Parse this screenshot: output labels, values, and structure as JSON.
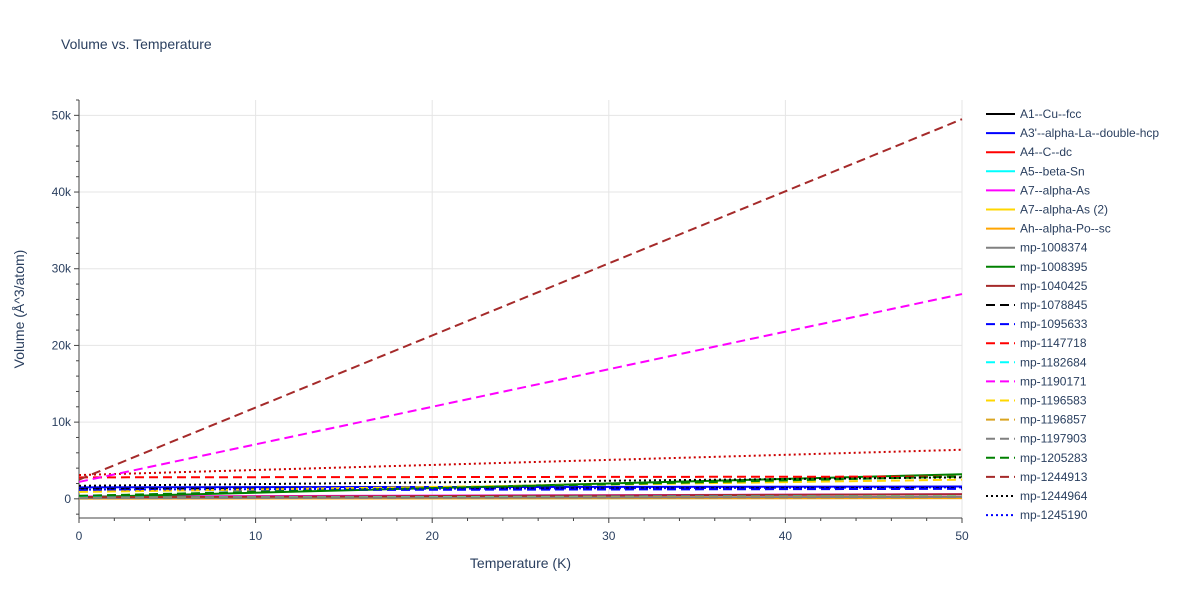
{
  "chart_data": {
    "type": "line",
    "title": "Volume vs. Temperature",
    "xlabel": "Temperature (K)",
    "ylabel": "Volume (Å^3/atom)",
    "xlim": [
      0,
      50
    ],
    "ylim": [
      -2500,
      52000
    ],
    "x_ticks": [
      0,
      10,
      20,
      30,
      40,
      50
    ],
    "y_ticks": [
      0,
      10000,
      20000,
      30000,
      40000,
      50000
    ],
    "y_tick_labels": [
      "0",
      "10k",
      "20k",
      "30k",
      "40k",
      "50k"
    ],
    "grid": true,
    "legend_position": "right",
    "x": [
      0,
      50
    ],
    "series": [
      {
        "name": "A1--Cu--fcc",
        "color": "#000000",
        "dash": "solid",
        "values": [
          60,
          180
        ]
      },
      {
        "name": "A3'--alpha-La--double-hcp",
        "color": "#0000ff",
        "dash": "solid",
        "values": [
          1500,
          1600
        ]
      },
      {
        "name": "A4--C--dc",
        "color": "#ff0000",
        "dash": "solid",
        "values": [
          80,
          200
        ]
      },
      {
        "name": "A5--beta-Sn",
        "color": "#00ffff",
        "dash": "solid",
        "values": [
          40,
          120
        ]
      },
      {
        "name": "A7--alpha-As",
        "color": "#ff00ff",
        "dash": "solid",
        "values": [
          300,
          600
        ]
      },
      {
        "name": "A7--alpha-As (2)",
        "color": "#ffd700",
        "dash": "solid",
        "values": [
          50,
          150
        ]
      },
      {
        "name": "Ah--alpha-Po--sc",
        "color": "#ffa500",
        "dash": "solid",
        "values": [
          30,
          90
        ]
      },
      {
        "name": "mp-1008374",
        "color": "#808080",
        "dash": "solid",
        "values": [
          100,
          250
        ]
      },
      {
        "name": "mp-1008395",
        "color": "#008000",
        "dash": "solid",
        "values": [
          200,
          3200
        ]
      },
      {
        "name": "mp-1040425",
        "color": "#a52a2a",
        "dash": "solid",
        "values": [
          200,
          600
        ]
      },
      {
        "name": "mp-1078845",
        "color": "#000000",
        "dash": "dash",
        "values": [
          1300,
          1400
        ]
      },
      {
        "name": "mp-1095633",
        "color": "#0000ff",
        "dash": "dash",
        "values": [
          1100,
          1300
        ]
      },
      {
        "name": "mp-1147718",
        "color": "#ff0000",
        "dash": "dash",
        "values": [
          2800,
          2900
        ]
      },
      {
        "name": "mp-1182684",
        "color": "#00ffff",
        "dash": "dash",
        "values": [
          150,
          350
        ]
      },
      {
        "name": "mp-1190171",
        "color": "#ff00ff",
        "dash": "dash",
        "values": [
          2200,
          26700
        ]
      },
      {
        "name": "mp-1196583",
        "color": "#ffd700",
        "dash": "dash",
        "values": [
          900,
          2500
        ]
      },
      {
        "name": "mp-1196857",
        "color": "#daa520",
        "dash": "dash",
        "values": [
          100,
          300
        ]
      },
      {
        "name": "mp-1197903",
        "color": "#808080",
        "dash": "dash",
        "values": [
          80,
          220
        ]
      },
      {
        "name": "mp-1205283",
        "color": "#008000",
        "dash": "dash",
        "values": [
          400,
          2900
        ]
      },
      {
        "name": "mp-1244913",
        "color": "#a52a2a",
        "dash": "dash",
        "values": [
          2500,
          49500
        ]
      },
      {
        "name": "mp-1244964",
        "color": "#000000",
        "dash": "dot",
        "values": [
          1700,
          2800
        ]
      },
      {
        "name": "mp-1245190",
        "color": "#0000ff",
        "dash": "dot",
        "values": [
          1200,
          1500
        ]
      }
    ],
    "extra_traces_not_in_visible_legend": [
      {
        "color": "#cc0000",
        "dash": "dot",
        "values": [
          3100,
          6400
        ]
      }
    ]
  }
}
